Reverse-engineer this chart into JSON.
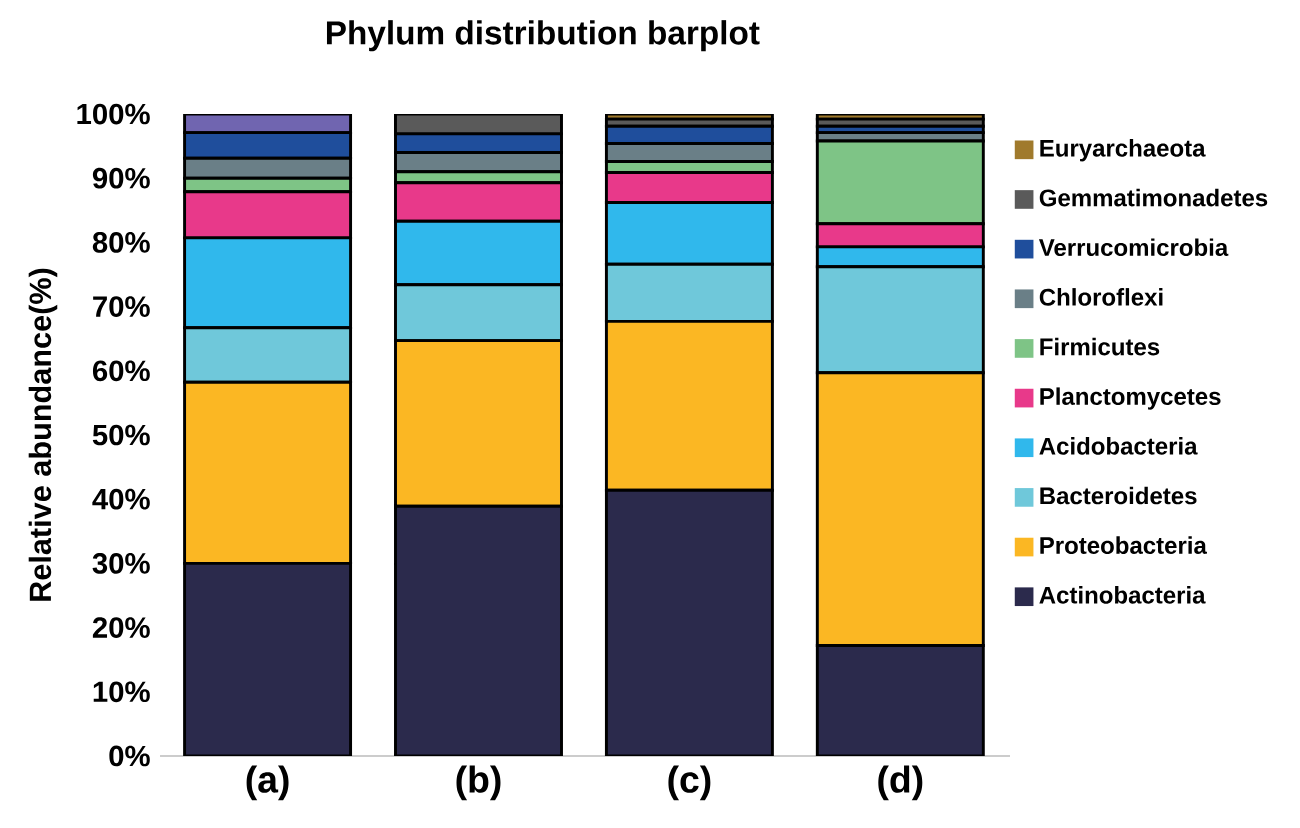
{
  "chart_data": {
    "type": "bar",
    "title": "Phylum distribution barplot",
    "ylabel": "Relative abundance(%)",
    "stacked": true,
    "legend": "right",
    "categories": [
      "(a)",
      "(b)",
      "(c)",
      "(d)"
    ],
    "ylim": [
      0,
      100
    ],
    "yticks": [
      {
        "value": 0,
        "label": "0%"
      },
      {
        "value": 10,
        "label": "10%"
      },
      {
        "value": 20,
        "label": "20%"
      },
      {
        "value": 30,
        "label": "30%"
      },
      {
        "value": 40,
        "label": "40%"
      },
      {
        "value": 50,
        "label": "50%"
      },
      {
        "value": 60,
        "label": "60%"
      },
      {
        "value": 70,
        "label": "70%"
      },
      {
        "value": 80,
        "label": "80%"
      },
      {
        "value": 90,
        "label": "90%"
      },
      {
        "value": 100,
        "label": "100%"
      }
    ],
    "series": [
      {
        "name": "Actinobacteria",
        "color": "#2b2a4c",
        "values": [
          30,
          38.9,
          41.4,
          17.2
        ]
      },
      {
        "name": "Proteobacteria",
        "color": "#fbb723",
        "values": [
          28.2,
          25.8,
          26.3,
          42.5
        ]
      },
      {
        "name": "Bacteroidetes",
        "color": "#6fc8da",
        "values": [
          8.5,
          8.7,
          8.9,
          16.5
        ]
      },
      {
        "name": "Acidobacteria",
        "color": "#30b8ec",
        "values": [
          14,
          9.9,
          9.6,
          3.1
        ]
      },
      {
        "name": "Planctomycetes",
        "color": "#e8398a",
        "values": [
          7.2,
          6,
          4.7,
          3.6
        ]
      },
      {
        "name": "Firmicutes",
        "color": "#7ec486",
        "values": [
          2.1,
          1.7,
          1.7,
          12.9
        ]
      },
      {
        "name": "Chloroflexi",
        "color": "#6a7f87",
        "values": [
          3.1,
          3,
          2.8,
          1.3
        ]
      },
      {
        "name": "Verrucomicrobia",
        "color": "#1f4e9c",
        "values": [
          4,
          2.9,
          2.7,
          1
        ]
      },
      {
        "name": "Gemmatimonadetes",
        "color": "#5a5a5a",
        "values": [
          0,
          3.1,
          1.1,
          1.1
        ]
      },
      {
        "name": "Euryarchaeota",
        "color": "#a07a2c",
        "values": [
          0,
          0,
          0.8,
          0.8
        ]
      },
      {
        "color": "#7065b0",
        "values": [
          2.9,
          null,
          null,
          null
        ]
      }
    ]
  }
}
